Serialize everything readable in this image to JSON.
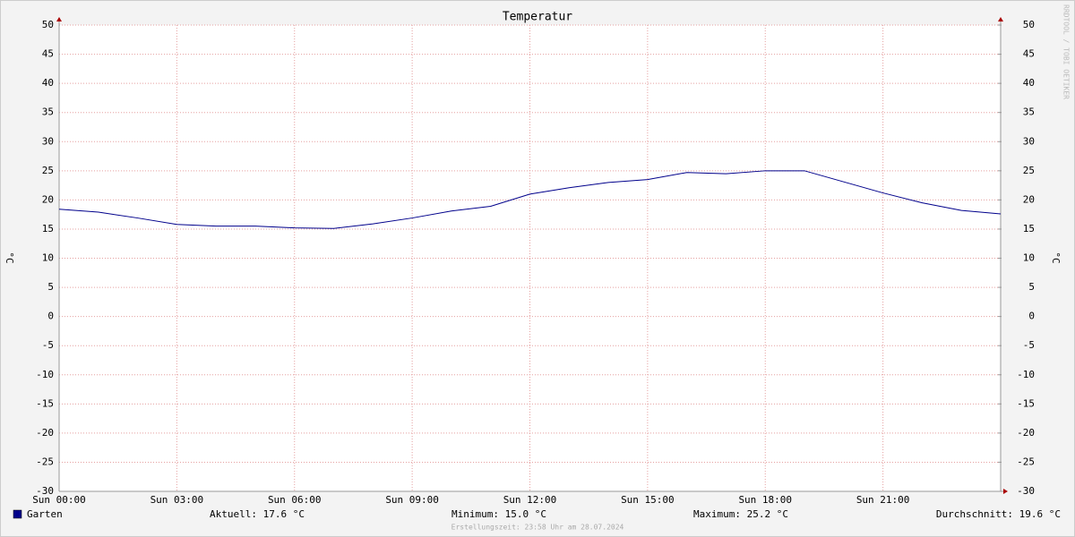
{
  "chart_data": {
    "type": "line",
    "title": "Temperatur",
    "y_label": "°C",
    "y2_label": "°C",
    "watermark": "RRDTOOL / TOBI OETIKER",
    "footer": "Erstellungszeit: 23:58 Uhr am 28.07.2024",
    "x": [
      0,
      1,
      2,
      3,
      4,
      5,
      6,
      7,
      8,
      9,
      10,
      11,
      12,
      13,
      14,
      15,
      16,
      17,
      18,
      19,
      20,
      21,
      22,
      23,
      24
    ],
    "series": [
      {
        "name": "Garten",
        "color": "#00008b",
        "values": [
          18.4,
          17.9,
          16.9,
          15.8,
          15.5,
          15.5,
          15.2,
          15.1,
          15.9,
          16.9,
          18.1,
          18.9,
          21.0,
          22.1,
          23.0,
          23.5,
          24.7,
          24.5,
          25.0,
          25.0,
          23.1,
          21.2,
          19.5,
          18.2,
          17.6
        ]
      }
    ],
    "xlim": [
      0,
      24
    ],
    "xticks": [
      {
        "value": 0,
        "label": "Sun 00:00"
      },
      {
        "value": 3,
        "label": "Sun 03:00"
      },
      {
        "value": 6,
        "label": "Sun 06:00"
      },
      {
        "value": 9,
        "label": "Sun 09:00"
      },
      {
        "value": 12,
        "label": "Sun 12:00"
      },
      {
        "value": 15,
        "label": "Sun 15:00"
      },
      {
        "value": 18,
        "label": "Sun 18:00"
      },
      {
        "value": 21,
        "label": "Sun 21:00"
      }
    ],
    "ylim": [
      -30,
      50
    ],
    "yticks": [
      -30,
      -25,
      -20,
      -15,
      -10,
      -5,
      0,
      5,
      10,
      15,
      20,
      25,
      30,
      35,
      40,
      45,
      50
    ],
    "y2lim": [
      -30,
      50
    ],
    "y2ticks": [
      -30,
      -25,
      -20,
      -15,
      -10,
      -5,
      0,
      5,
      10,
      15,
      20,
      25,
      30,
      35,
      40,
      45,
      50
    ],
    "grid": true,
    "stats": [
      "Aktuell: 17.6 °C",
      "Minimum: 15.0 °C",
      "Maximum: 25.2 °C",
      "Durchschnitt: 19.6 °C"
    ]
  }
}
